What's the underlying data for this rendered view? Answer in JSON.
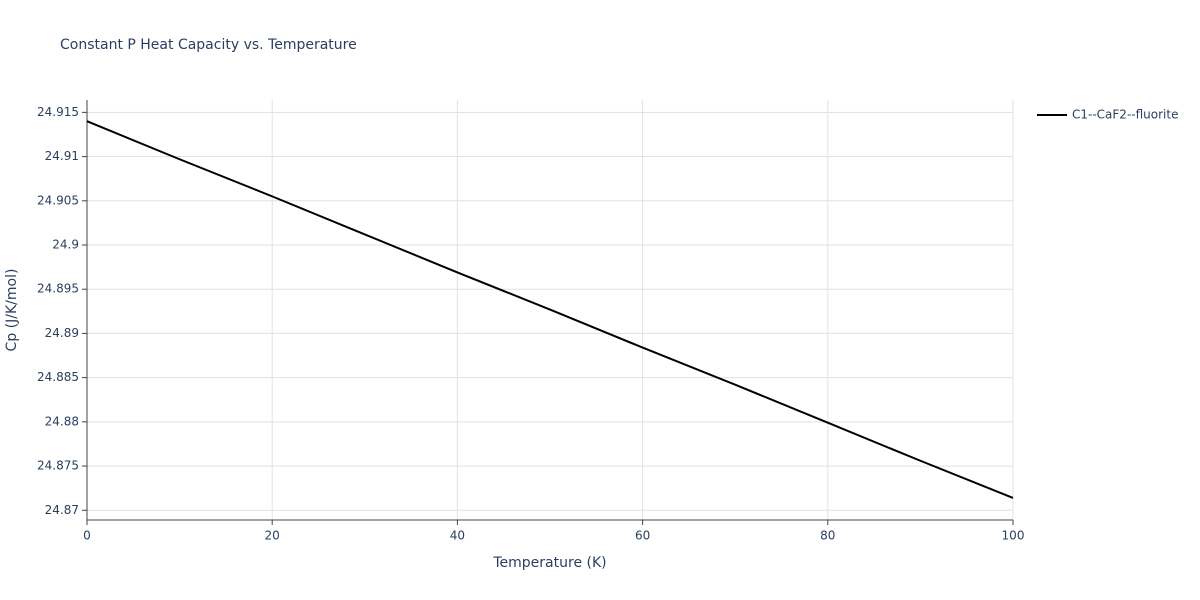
{
  "chart_data": {
    "type": "line",
    "title": "Constant P Heat Capacity vs. Temperature",
    "x_label": "Temperature (K)",
    "y_label": "Cp (J/K/mol)",
    "x": [
      0,
      10,
      20,
      30,
      40,
      50,
      60,
      70,
      80,
      90,
      100
    ],
    "series": [
      {
        "name": "C1--CaF2--fluorite",
        "color": "#000000",
        "values": [
          24.914,
          24.9097,
          24.9055,
          24.9012,
          24.8969,
          24.8927,
          24.8884,
          24.8842,
          24.8799,
          24.8756,
          24.8714
        ]
      }
    ],
    "xlim": [
      0,
      100
    ],
    "xticks": [
      0,
      20,
      40,
      60,
      80,
      100
    ],
    "ylim": [
      24.8689,
      24.9164
    ],
    "yticks": [
      24.87,
      24.875,
      24.88,
      24.885,
      24.89,
      24.895,
      24.9,
      24.905,
      24.91,
      24.915
    ],
    "grid": true,
    "legend": "right"
  }
}
